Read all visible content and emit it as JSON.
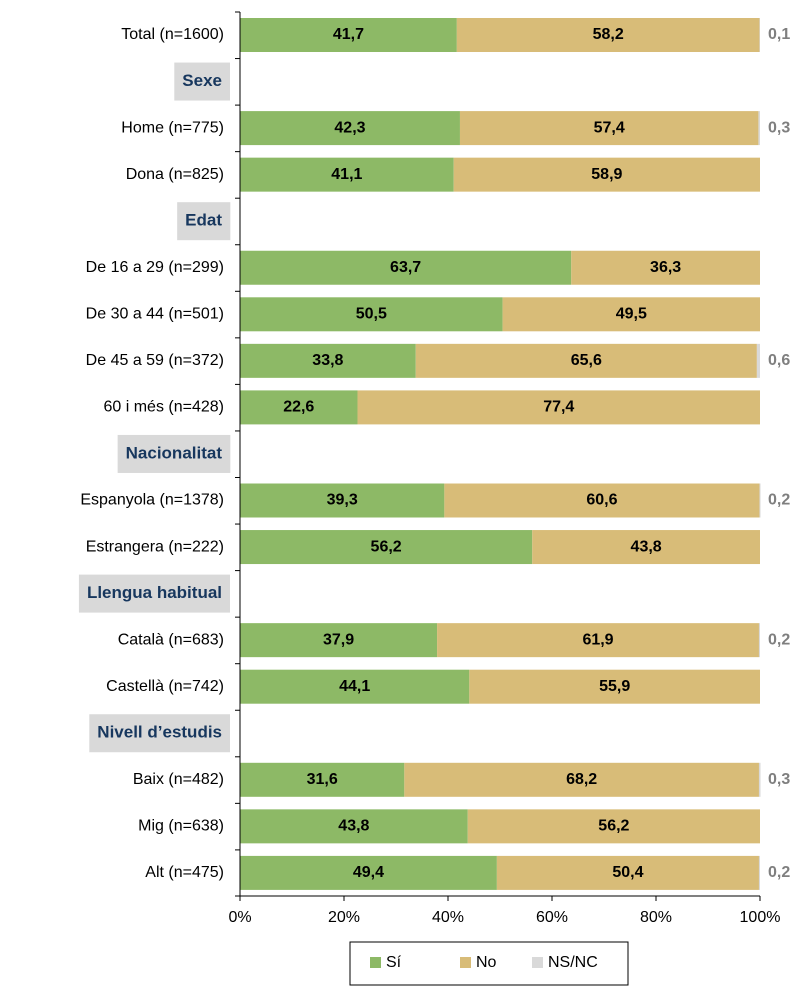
{
  "chart_data": {
    "type": "stacked_barh",
    "categories": [
      "Total (n=1600)",
      "Sexe",
      "Home (n=775)",
      "Dona (n=825)",
      "Edat",
      "De 16 a 29 (n=299)",
      "De 30 a 44 (n=501)",
      "De 45 a 59 (n=372)",
      "60 i més (n=428)",
      "Nacionalitat",
      "Espanyola (n=1378)",
      "Estrangera (n=222)",
      "Llengua habitual",
      "Català (n=683)",
      "Castellà (n=742)",
      "Nivell d’estudis",
      "Baix (n=482)",
      "Mig (n=638)",
      "Alt (n=475)"
    ],
    "series": [
      {
        "name": "Sí",
        "color": "#8db966",
        "values": [
          41.7,
          null,
          42.3,
          41.1,
          null,
          63.7,
          50.5,
          33.8,
          22.6,
          null,
          39.3,
          56.2,
          null,
          37.9,
          44.1,
          null,
          31.6,
          43.8,
          49.4
        ],
        "value_labels": [
          "41,7",
          null,
          "42,3",
          "41,1",
          null,
          "63,7",
          "50,5",
          "33,8",
          "22,6",
          null,
          "39,3",
          "56,2",
          null,
          "37,9",
          "44,1",
          null,
          "31,6",
          "43,8",
          "49,4"
        ]
      },
      {
        "name": "No",
        "color": "#d8bc78",
        "values": [
          58.2,
          null,
          57.4,
          58.9,
          null,
          36.3,
          49.5,
          65.6,
          77.4,
          null,
          60.6,
          43.8,
          null,
          61.9,
          55.9,
          null,
          68.2,
          56.2,
          50.4
        ],
        "value_labels": [
          "58,2",
          null,
          "57,4",
          "58,9",
          null,
          "36,3",
          "49,5",
          "65,6",
          "77,4",
          null,
          "60,6",
          "43,8",
          null,
          "61,9",
          "55,9",
          null,
          "68,2",
          "56,2",
          "50,4"
        ]
      },
      {
        "name": "NS/NC",
        "color": "#d9d9d9",
        "values": [
          0.1,
          null,
          0.3,
          null,
          null,
          null,
          null,
          0.6,
          null,
          null,
          0.2,
          null,
          null,
          0.2,
          null,
          null,
          0.3,
          null,
          0.2
        ],
        "value_labels": [
          "0,1",
          null,
          "0,3",
          null,
          null,
          null,
          null,
          "0,6",
          null,
          null,
          "0,2",
          null,
          null,
          "0,2",
          null,
          null,
          "0,3",
          null,
          "0,2"
        ]
      }
    ],
    "xlim": [
      0,
      100
    ],
    "xticks": [
      {
        "value": 0,
        "label": "0%"
      },
      {
        "value": 20,
        "label": "20%"
      },
      {
        "value": 40,
        "label": "40%"
      },
      {
        "value": 60,
        "label": "60%"
      },
      {
        "value": 80,
        "label": "80%"
      },
      {
        "value": 100,
        "label": "100%"
      }
    ],
    "legend": "bottom"
  }
}
